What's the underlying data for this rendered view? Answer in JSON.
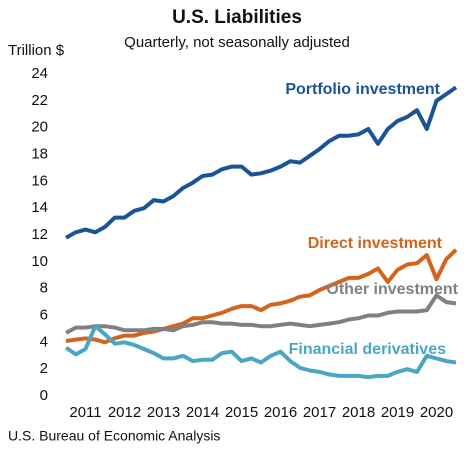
{
  "chart_data": {
    "type": "line",
    "title": "U.S. Liabilities",
    "subtitle": "Quarterly, not seasonally adjusted",
    "y_label": "Trillion $",
    "source": "U.S. Bureau of Economic Analysis",
    "x": [
      2011,
      2011.25,
      2011.5,
      2011.75,
      2012,
      2012.25,
      2012.5,
      2012.75,
      2013,
      2013.25,
      2013.5,
      2013.75,
      2014,
      2014.25,
      2014.5,
      2014.75,
      2015,
      2015.25,
      2015.5,
      2015.75,
      2016,
      2016.25,
      2016.5,
      2016.75,
      2017,
      2017.25,
      2017.5,
      2017.75,
      2018,
      2018.25,
      2018.5,
      2018.75,
      2019,
      2019.25,
      2019.5,
      2019.75,
      2020,
      2020.25,
      2020.5,
      2020.75,
      2021
    ],
    "xlim": [
      2011,
      2021
    ],
    "xticks": [
      {
        "value": 2011.5,
        "label": "2011"
      },
      {
        "value": 2012.5,
        "label": "2012"
      },
      {
        "value": 2013.5,
        "label": "2013"
      },
      {
        "value": 2014.5,
        "label": "2014"
      },
      {
        "value": 2015.5,
        "label": "2015"
      },
      {
        "value": 2016.5,
        "label": "2016"
      },
      {
        "value": 2017.5,
        "label": "2017"
      },
      {
        "value": 2018.5,
        "label": "2018"
      },
      {
        "value": 2019.5,
        "label": "2019"
      },
      {
        "value": 2020.5,
        "label": "2020"
      }
    ],
    "ylim": [
      0,
      24
    ],
    "yticks": [
      0,
      2,
      4,
      6,
      8,
      10,
      12,
      14,
      16,
      18,
      20,
      22,
      24
    ],
    "grid": false,
    "series": [
      {
        "name": "Portfolio investment",
        "color": "#1a5496",
        "values": [
          11.8,
          12.2,
          12.4,
          12.2,
          12.6,
          13.3,
          13.3,
          13.8,
          14.0,
          14.6,
          14.5,
          14.9,
          15.5,
          15.9,
          16.4,
          16.5,
          16.9,
          17.1,
          17.1,
          16.5,
          16.6,
          16.8,
          17.1,
          17.5,
          17.4,
          17.9,
          18.4,
          19.0,
          19.4,
          19.4,
          19.5,
          19.9,
          18.8,
          19.9,
          20.5,
          20.8,
          21.3,
          19.9,
          22.0,
          22.5,
          23.0
        ]
      },
      {
        "name": "Direct investment",
        "color": "#d4631c",
        "values": [
          4.1,
          4.2,
          4.3,
          4.2,
          4.0,
          4.3,
          4.5,
          4.5,
          4.7,
          4.8,
          5.0,
          5.2,
          5.4,
          5.8,
          5.8,
          6.0,
          6.2,
          6.5,
          6.7,
          6.7,
          6.4,
          6.8,
          6.9,
          7.1,
          7.4,
          7.5,
          7.9,
          8.2,
          8.5,
          8.8,
          8.8,
          9.1,
          9.5,
          8.5,
          9.4,
          9.8,
          9.9,
          10.5,
          8.7,
          10.2,
          10.9
        ]
      },
      {
        "name": "Other investment",
        "color": "#808080",
        "values": [
          4.7,
          5.1,
          5.1,
          5.2,
          5.2,
          5.1,
          4.9,
          4.9,
          4.9,
          5.0,
          5.0,
          4.9,
          5.2,
          5.3,
          5.5,
          5.5,
          5.4,
          5.4,
          5.3,
          5.3,
          5.2,
          5.2,
          5.3,
          5.4,
          5.3,
          5.2,
          5.3,
          5.4,
          5.5,
          5.7,
          5.8,
          6.0,
          6.0,
          6.2,
          6.3,
          6.3,
          6.3,
          6.4,
          7.5,
          7.0,
          6.9
        ]
      },
      {
        "name": "Financial derivatives",
        "color": "#4aa6c4",
        "values": [
          3.6,
          3.1,
          3.5,
          5.2,
          4.6,
          3.9,
          4.0,
          3.8,
          3.5,
          3.2,
          2.8,
          2.8,
          3.0,
          2.6,
          2.7,
          2.7,
          3.2,
          3.3,
          2.6,
          2.8,
          2.5,
          3.0,
          3.3,
          2.6,
          2.1,
          1.9,
          1.8,
          1.6,
          1.5,
          1.5,
          1.5,
          1.4,
          1.5,
          1.5,
          1.8,
          2.0,
          1.8,
          3.0,
          2.8,
          2.6,
          2.5
        ]
      }
    ]
  }
}
